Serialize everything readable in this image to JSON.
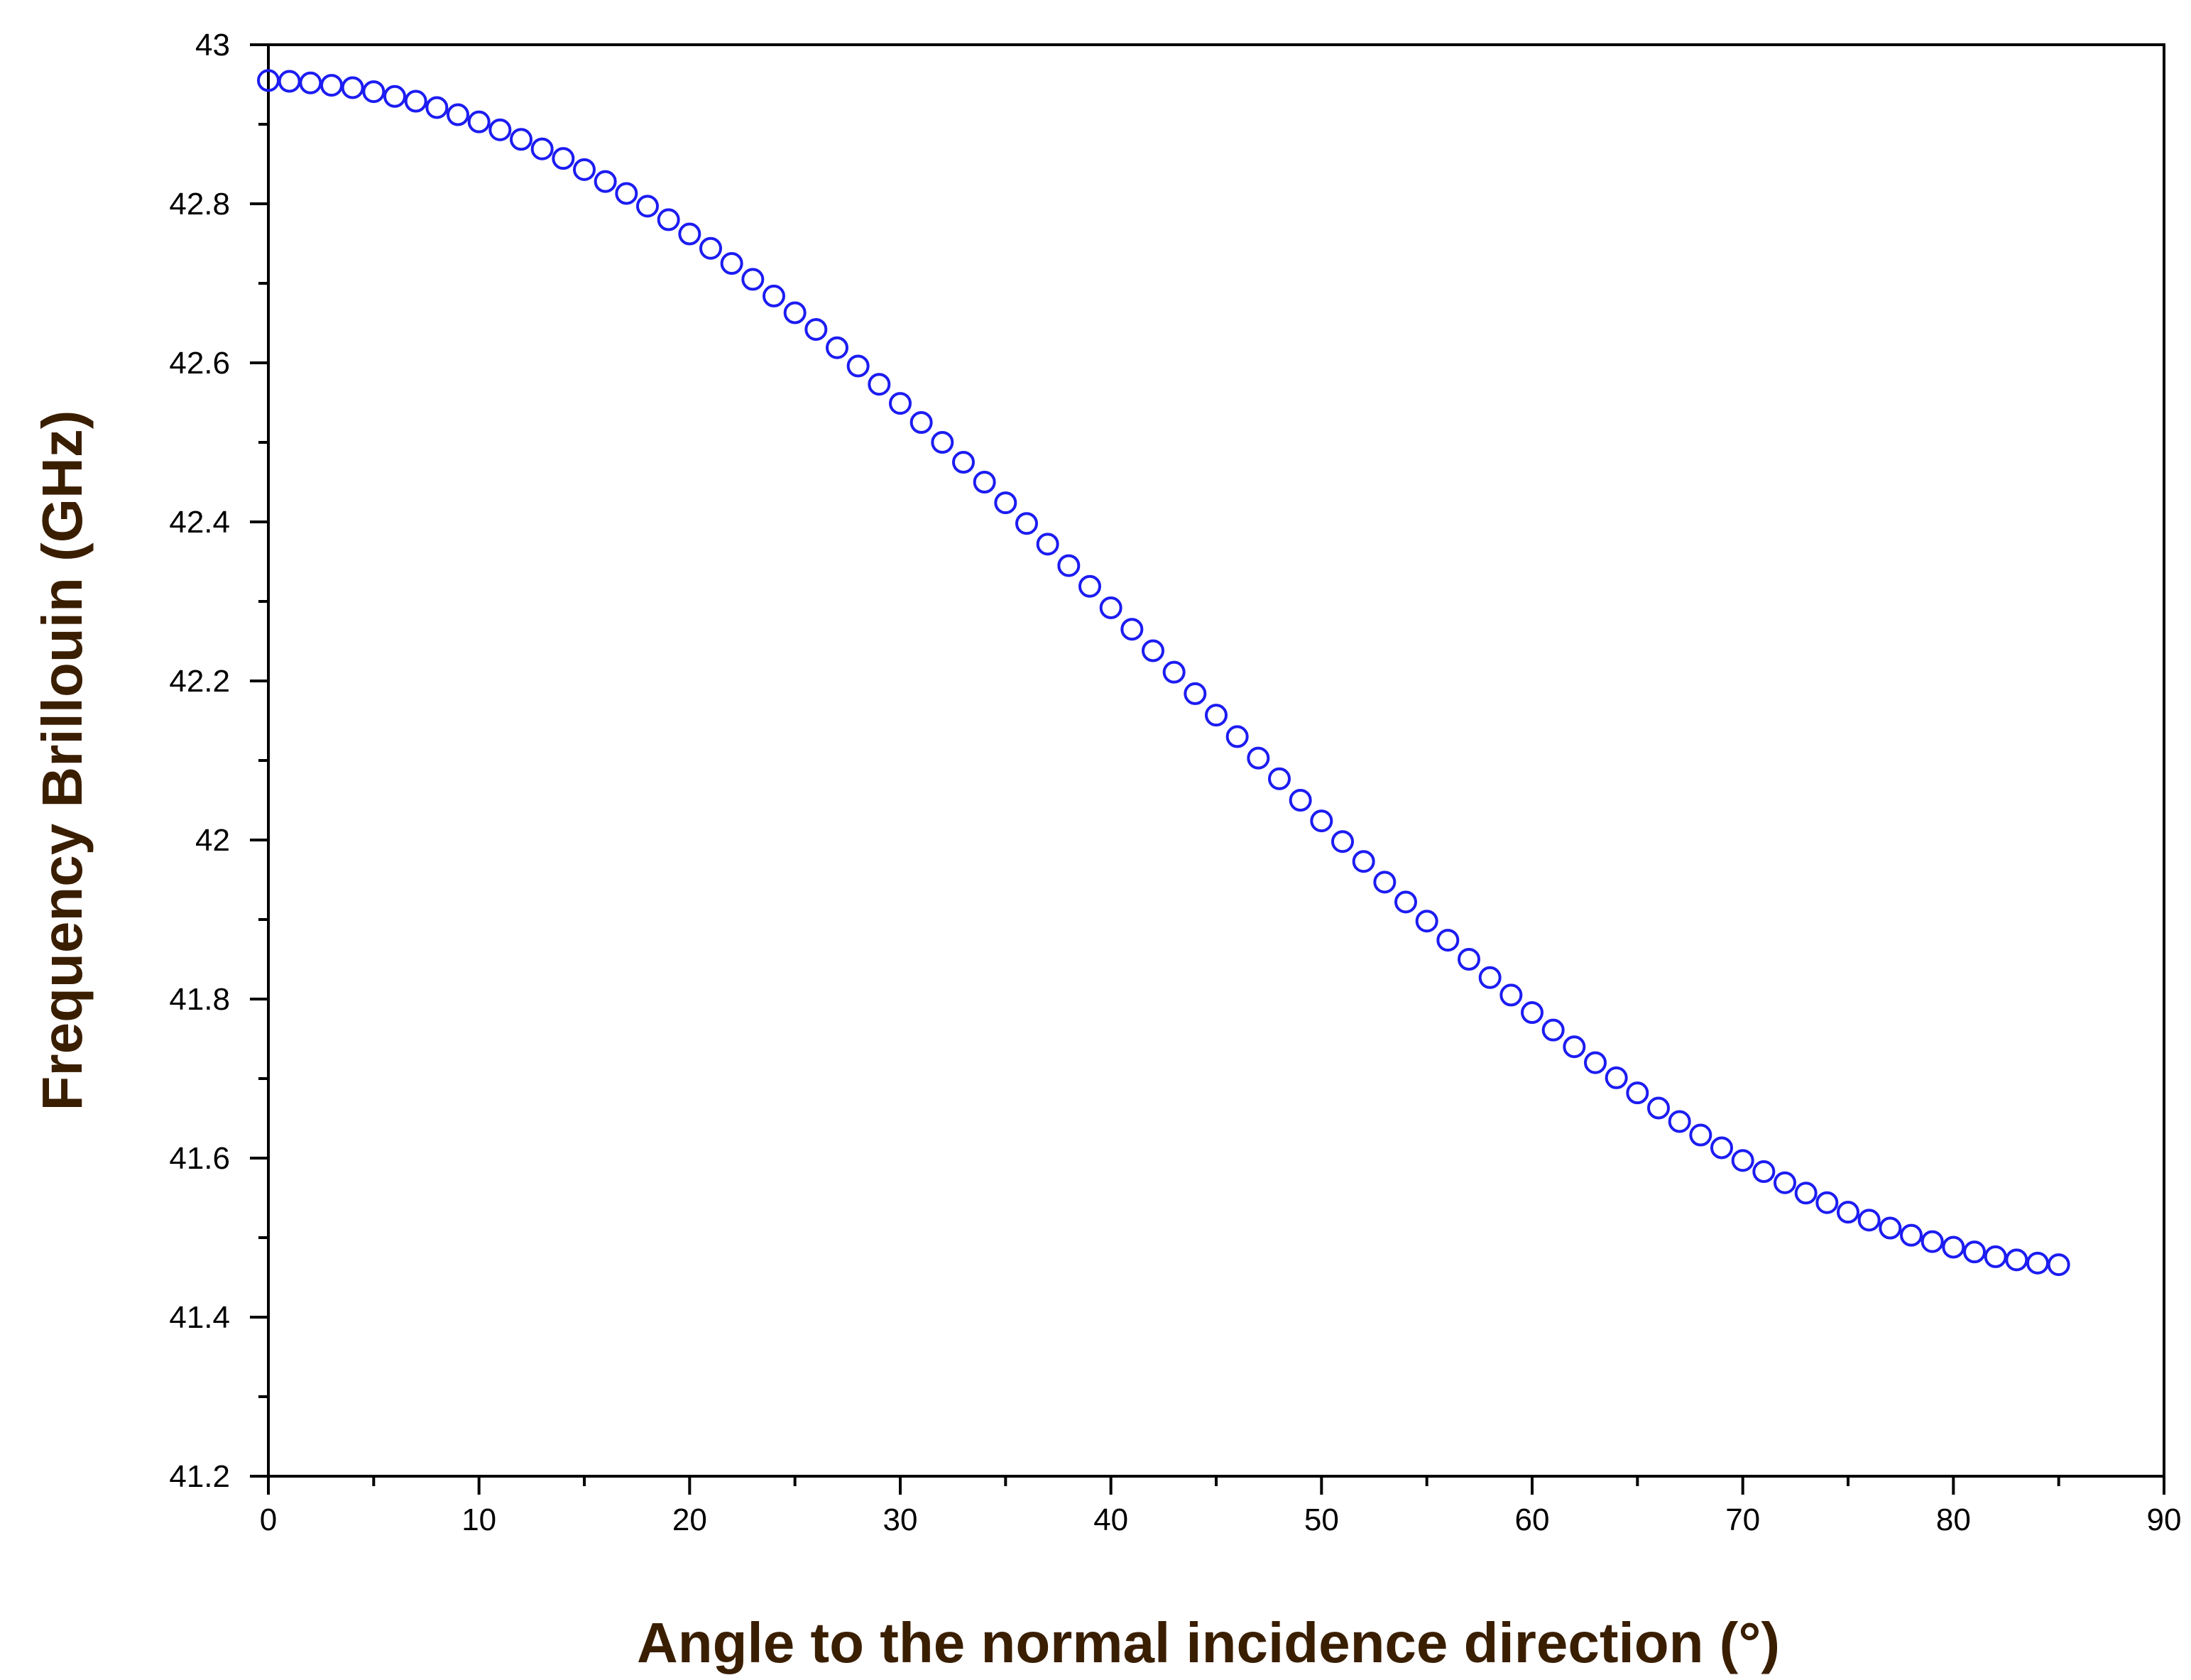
{
  "colors": {
    "marker": "#1c1cf2",
    "axis_title": "#3a1e00",
    "axis_line": "#000000",
    "background": "#ffffff"
  },
  "chart_data": {
    "type": "scatter",
    "title": "",
    "xlabel": "Angle to the normal incidence direction (°)",
    "ylabel": "Frequency Brillouin (GHz)",
    "xlim": [
      0,
      90
    ],
    "ylim": [
      41.2,
      43
    ],
    "x_ticks": [
      0,
      10,
      20,
      30,
      40,
      50,
      60,
      70,
      80,
      90
    ],
    "x_tick_labels": [
      "0",
      "10",
      "20",
      "30",
      "40",
      "50",
      "60",
      "70",
      "80",
      "90"
    ],
    "y_ticks": [
      41.2,
      41.4,
      41.6,
      41.8,
      42,
      42.2,
      42.4,
      42.6,
      42.8,
      43
    ],
    "y_tick_labels": [
      "41.2",
      "41.4",
      "41.6",
      "41.8",
      "42",
      "42.2",
      "42.4",
      "42.6",
      "42.8",
      "43"
    ],
    "x_minor_step": 5,
    "y_minor_step": 0.1,
    "marker": "open-circle",
    "legend": "none",
    "grid": false,
    "series": [
      {
        "name": "Frequency Brillouin",
        "x": [
          0,
          1,
          2,
          3,
          4,
          5,
          6,
          7,
          8,
          9,
          10,
          11,
          12,
          13,
          14,
          15,
          16,
          17,
          18,
          19,
          20,
          21,
          22,
          23,
          24,
          25,
          26,
          27,
          28,
          29,
          30,
          31,
          32,
          33,
          34,
          35,
          36,
          37,
          38,
          39,
          40,
          41,
          42,
          43,
          44,
          45,
          46,
          47,
          48,
          49,
          50,
          51,
          52,
          53,
          54,
          55,
          56,
          57,
          58,
          59,
          60,
          61,
          62,
          63,
          64,
          65,
          66,
          67,
          68,
          69,
          70,
          71,
          72,
          73,
          74,
          75,
          76,
          77,
          78,
          79,
          80,
          81,
          82,
          83,
          84,
          85
        ],
        "y": [
          42.955,
          42.954,
          42.952,
          42.949,
          42.946,
          42.941,
          42.935,
          42.929,
          42.921,
          42.912,
          42.903,
          42.893,
          42.881,
          42.869,
          42.857,
          42.843,
          42.828,
          42.813,
          42.797,
          42.78,
          42.762,
          42.744,
          42.725,
          42.705,
          42.684,
          42.663,
          42.642,
          42.619,
          42.596,
          42.573,
          42.549,
          42.525,
          42.5,
          42.475,
          42.45,
          42.424,
          42.398,
          42.372,
          42.345,
          42.319,
          42.292,
          42.265,
          42.238,
          42.211,
          42.184,
          42.157,
          42.13,
          42.103,
          42.077,
          42.05,
          42.024,
          41.998,
          41.973,
          41.947,
          41.922,
          41.898,
          41.874,
          41.85,
          41.827,
          41.805,
          41.783,
          41.761,
          41.74,
          41.72,
          41.701,
          41.682,
          41.663,
          41.646,
          41.629,
          41.613,
          41.597,
          41.583,
          41.569,
          41.556,
          41.544,
          41.532,
          41.522,
          41.512,
          41.503,
          41.495,
          41.488,
          41.482,
          41.476,
          41.472,
          41.468,
          41.466
        ]
      }
    ]
  }
}
